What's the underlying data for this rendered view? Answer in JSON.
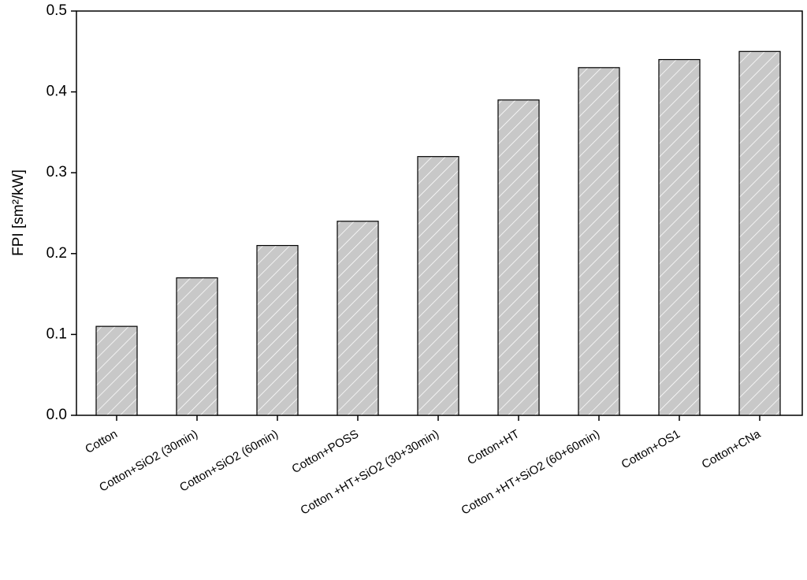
{
  "chart_data": {
    "type": "bar",
    "y_label": "FPI [sm²/kW]",
    "categories": [
      "Cotton",
      "Cotton+SiO2 (30min)",
      "Cotton+SiO2 (60min)",
      "Cotton+POSS",
      "Cotton +HT+SiO2 (30+30min)",
      "Cotton+HT",
      "Cotton +HT+SiO2 (60+60min)",
      "Cotton+OS1",
      "Cotton+CNa"
    ],
    "values": [
      0.11,
      0.17,
      0.21,
      0.24,
      0.32,
      0.39,
      0.43,
      0.44,
      0.45
    ],
    "color": "#c8c8c8",
    "ylim": [
      0,
      0.5
    ],
    "yticks": [
      {
        "value": 0,
        "label": "0.0"
      },
      0.1,
      0.2,
      0.3,
      0.4,
      0.5
    ]
  }
}
